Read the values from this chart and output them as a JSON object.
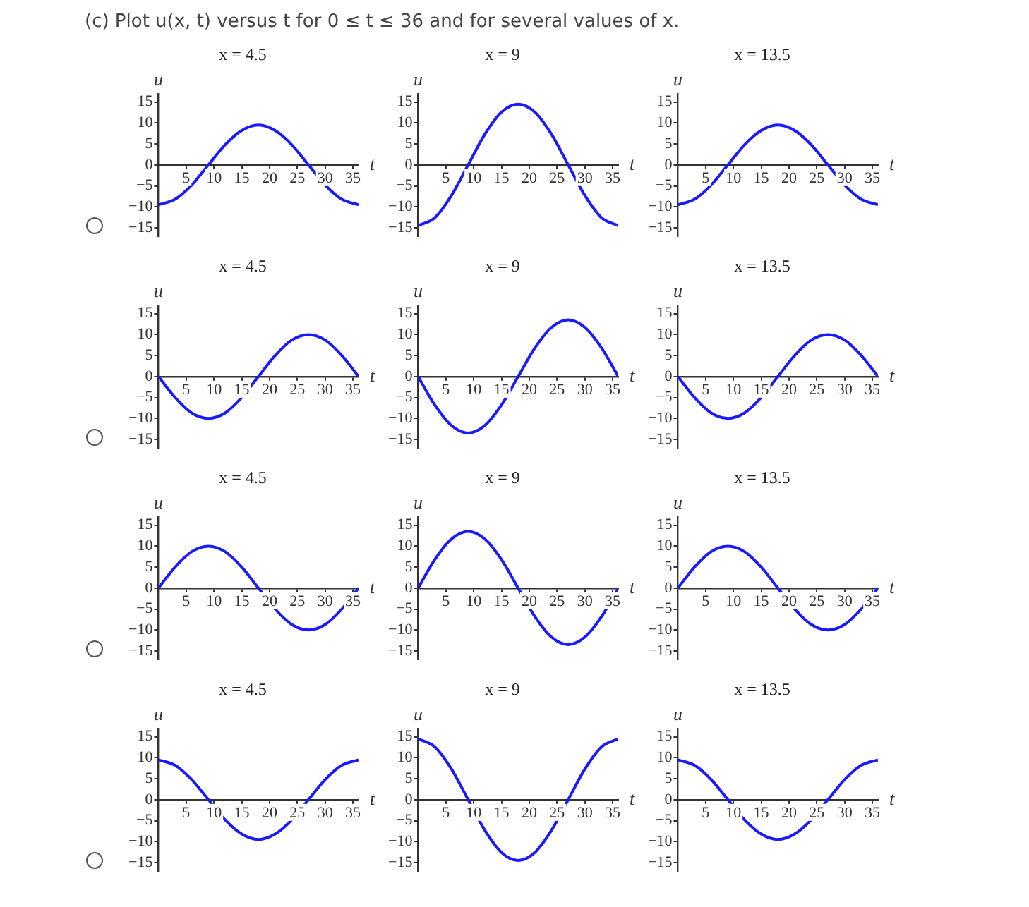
{
  "chart_data": [
    {
      "type": "line",
      "title": "x = 4.5",
      "xlabel": "t",
      "ylabel": "u",
      "annotations": [
        "(c) Plot  u(x, t)  versus t for  0 ≤ t ≤ 36  and for several values of x."
      ],
      "marker": "none",
      "xlim": [
        0,
        36
      ],
      "ylim": [
        -17,
        17
      ],
      "xticks": [
        5,
        10,
        15,
        20,
        25,
        30,
        35
      ],
      "yticks": [
        -15,
        -10,
        -5,
        0,
        5,
        10,
        15
      ],
      "x": [
        0,
        3,
        6,
        9,
        12,
        15,
        18,
        21,
        24,
        27,
        30,
        33,
        36
      ],
      "series": [
        {
          "color": "#1a1aff",
          "values": [
            -9.5,
            -8.2,
            -4.8,
            0,
            4.8,
            8.2,
            9.5,
            8.2,
            4.8,
            0,
            -4.8,
            -8.2,
            -9.5
          ]
        }
      ]
    },
    {
      "type": "line",
      "title": "x = 9",
      "xlabel": "t",
      "ylabel": "u",
      "marker": "none",
      "xlim": [
        0,
        36
      ],
      "ylim": [
        -17,
        17
      ],
      "xticks": [
        5,
        10,
        15,
        20,
        25,
        30,
        35
      ],
      "yticks": [
        -15,
        -10,
        -5,
        0,
        5,
        10,
        15
      ],
      "x": [
        0,
        3,
        6,
        9,
        12,
        15,
        18,
        21,
        24,
        27,
        30,
        33,
        36
      ],
      "series": [
        {
          "color": "#1a1aff",
          "values": [
            -14.5,
            -12.6,
            -7.3,
            0,
            7.3,
            12.6,
            14.5,
            12.6,
            7.3,
            0,
            -7.3,
            -12.6,
            -14.5
          ]
        }
      ]
    },
    {
      "type": "line",
      "title": "x = 13.5",
      "xlabel": "t",
      "ylabel": "u",
      "marker": "none",
      "xlim": [
        0,
        36
      ],
      "ylim": [
        -17,
        17
      ],
      "xticks": [
        5,
        10,
        15,
        20,
        25,
        30,
        35
      ],
      "yticks": [
        -15,
        -10,
        -5,
        0,
        5,
        10,
        15
      ],
      "x": [
        0,
        3,
        6,
        9,
        12,
        15,
        18,
        21,
        24,
        27,
        30,
        33,
        36
      ],
      "series": [
        {
          "color": "#1a1aff",
          "values": [
            -9.5,
            -8.2,
            -4.8,
            0,
            4.8,
            8.2,
            9.5,
            8.2,
            4.8,
            0,
            -4.8,
            -8.2,
            -9.5
          ]
        }
      ]
    },
    {
      "type": "line",
      "title": "x = 4.5",
      "xlabel": "t",
      "ylabel": "u",
      "marker": "none",
      "xlim": [
        0,
        36
      ],
      "ylim": [
        -17,
        17
      ],
      "xticks": [
        5,
        10,
        15,
        20,
        25,
        30,
        35
      ],
      "yticks": [
        -15,
        -10,
        -5,
        0,
        5,
        10,
        15
      ],
      "x": [
        0,
        3,
        6,
        9,
        12,
        15,
        18,
        21,
        24,
        27,
        30,
        33,
        36
      ],
      "series": [
        {
          "color": "#1a1aff",
          "values": [
            0,
            -5,
            -8.7,
            -10,
            -8.7,
            -5,
            0,
            5,
            8.7,
            10,
            8.7,
            5,
            0
          ]
        }
      ]
    },
    {
      "type": "line",
      "title": "x = 9",
      "xlabel": "t",
      "ylabel": "u",
      "marker": "none",
      "xlim": [
        0,
        36
      ],
      "ylim": [
        -17,
        17
      ],
      "xticks": [
        5,
        10,
        15,
        20,
        25,
        30,
        35
      ],
      "yticks": [
        -15,
        -10,
        -5,
        0,
        5,
        10,
        15
      ],
      "x": [
        0,
        3,
        6,
        9,
        12,
        15,
        18,
        21,
        24,
        27,
        30,
        33,
        36
      ],
      "series": [
        {
          "color": "#1a1aff",
          "values": [
            0,
            -6.8,
            -11.7,
            -13.5,
            -11.7,
            -6.8,
            0,
            6.8,
            11.7,
            13.5,
            11.7,
            6.8,
            0
          ]
        }
      ]
    },
    {
      "type": "line",
      "title": "x = 13.5",
      "xlabel": "t",
      "ylabel": "u",
      "marker": "none",
      "xlim": [
        0,
        36
      ],
      "ylim": [
        -17,
        17
      ],
      "xticks": [
        5,
        10,
        15,
        20,
        25,
        30,
        35
      ],
      "yticks": [
        -15,
        -10,
        -5,
        0,
        5,
        10,
        15
      ],
      "x": [
        0,
        3,
        6,
        9,
        12,
        15,
        18,
        21,
        24,
        27,
        30,
        33,
        36
      ],
      "series": [
        {
          "color": "#1a1aff",
          "values": [
            0,
            -5,
            -8.7,
            -10,
            -8.7,
            -5,
            0,
            5,
            8.7,
            10,
            8.7,
            5,
            0
          ]
        }
      ]
    },
    {
      "type": "line",
      "title": "x = 4.5",
      "xlabel": "t",
      "ylabel": "u",
      "marker": "none",
      "xlim": [
        0,
        36
      ],
      "ylim": [
        -17,
        17
      ],
      "xticks": [
        5,
        10,
        15,
        20,
        25,
        30,
        35
      ],
      "yticks": [
        -15,
        -10,
        -5,
        0,
        5,
        10,
        15
      ],
      "x": [
        0,
        3,
        6,
        9,
        12,
        15,
        18,
        21,
        24,
        27,
        30,
        33,
        36
      ],
      "series": [
        {
          "color": "#1a1aff",
          "values": [
            0,
            5,
            8.7,
            10,
            8.7,
            5,
            0,
            -5,
            -8.7,
            -10,
            -8.7,
            -5,
            0
          ]
        }
      ]
    },
    {
      "type": "line",
      "title": "x = 9",
      "xlabel": "t",
      "ylabel": "u",
      "marker": "none",
      "xlim": [
        0,
        36
      ],
      "ylim": [
        -17,
        17
      ],
      "xticks": [
        5,
        10,
        15,
        20,
        25,
        30,
        35
      ],
      "yticks": [
        -15,
        -10,
        -5,
        0,
        5,
        10,
        15
      ],
      "x": [
        0,
        3,
        6,
        9,
        12,
        15,
        18,
        21,
        24,
        27,
        30,
        33,
        36
      ],
      "series": [
        {
          "color": "#1a1aff",
          "values": [
            0,
            6.8,
            11.7,
            13.5,
            11.7,
            6.8,
            0,
            -6.8,
            -11.7,
            -13.5,
            -11.7,
            -6.8,
            0
          ]
        }
      ]
    },
    {
      "type": "line",
      "title": "x = 13.5",
      "xlabel": "t",
      "ylabel": "u",
      "marker": "none",
      "xlim": [
        0,
        36
      ],
      "ylim": [
        -17,
        17
      ],
      "xticks": [
        5,
        10,
        15,
        20,
        25,
        30,
        35
      ],
      "yticks": [
        -15,
        -10,
        -5,
        0,
        5,
        10,
        15
      ],
      "x": [
        0,
        3,
        6,
        9,
        12,
        15,
        18,
        21,
        24,
        27,
        30,
        33,
        36
      ],
      "series": [
        {
          "color": "#1a1aff",
          "values": [
            0,
            5,
            8.7,
            10,
            8.7,
            5,
            0,
            -5,
            -8.7,
            -10,
            -8.7,
            -5,
            0
          ]
        }
      ]
    },
    {
      "type": "line",
      "title": "x = 4.5",
      "xlabel": "t",
      "ylabel": "u",
      "marker": "none",
      "xlim": [
        0,
        36
      ],
      "ylim": [
        -17,
        17
      ],
      "xticks": [
        5,
        10,
        15,
        20,
        25,
        30,
        35
      ],
      "yticks": [
        -15,
        -10,
        -5,
        0,
        5,
        10,
        15
      ],
      "x": [
        0,
        3,
        6,
        9,
        12,
        15,
        18,
        21,
        24,
        27,
        30,
        33,
        36
      ],
      "series": [
        {
          "color": "#1a1aff",
          "values": [
            9.5,
            8.2,
            4.8,
            0,
            -4.8,
            -8.2,
            -9.5,
            -8.2,
            -4.8,
            0,
            4.8,
            8.2,
            9.5
          ]
        }
      ]
    },
    {
      "type": "line",
      "title": "x = 9",
      "xlabel": "t",
      "ylabel": "u",
      "marker": "none",
      "xlim": [
        0,
        36
      ],
      "ylim": [
        -17,
        17
      ],
      "xticks": [
        5,
        10,
        15,
        20,
        25,
        30,
        35
      ],
      "yticks": [
        -15,
        -10,
        -5,
        0,
        5,
        10,
        15
      ],
      "x": [
        0,
        3,
        6,
        9,
        12,
        15,
        18,
        21,
        24,
        27,
        30,
        33,
        36
      ],
      "series": [
        {
          "color": "#1a1aff",
          "values": [
            14.5,
            12.6,
            7.3,
            0,
            -7.3,
            -12.6,
            -14.5,
            -12.6,
            -7.3,
            0,
            7.3,
            12.6,
            14.5
          ]
        }
      ]
    },
    {
      "type": "line",
      "title": "x = 13.5",
      "xlabel": "t",
      "ylabel": "u",
      "marker": "none",
      "xlim": [
        0,
        36
      ],
      "ylim": [
        -17,
        17
      ],
      "xticks": [
        5,
        10,
        15,
        20,
        25,
        30,
        35
      ],
      "yticks": [
        -15,
        -10,
        -5,
        0,
        5,
        10,
        15
      ],
      "x": [
        0,
        3,
        6,
        9,
        12,
        15,
        18,
        21,
        24,
        27,
        30,
        33,
        36
      ],
      "series": [
        {
          "color": "#1a1aff",
          "values": [
            9.5,
            8.2,
            4.8,
            0,
            -4.8,
            -8.2,
            -9.5,
            -8.2,
            -4.8,
            0,
            4.8,
            8.2,
            9.5
          ]
        }
      ]
    }
  ]
}
